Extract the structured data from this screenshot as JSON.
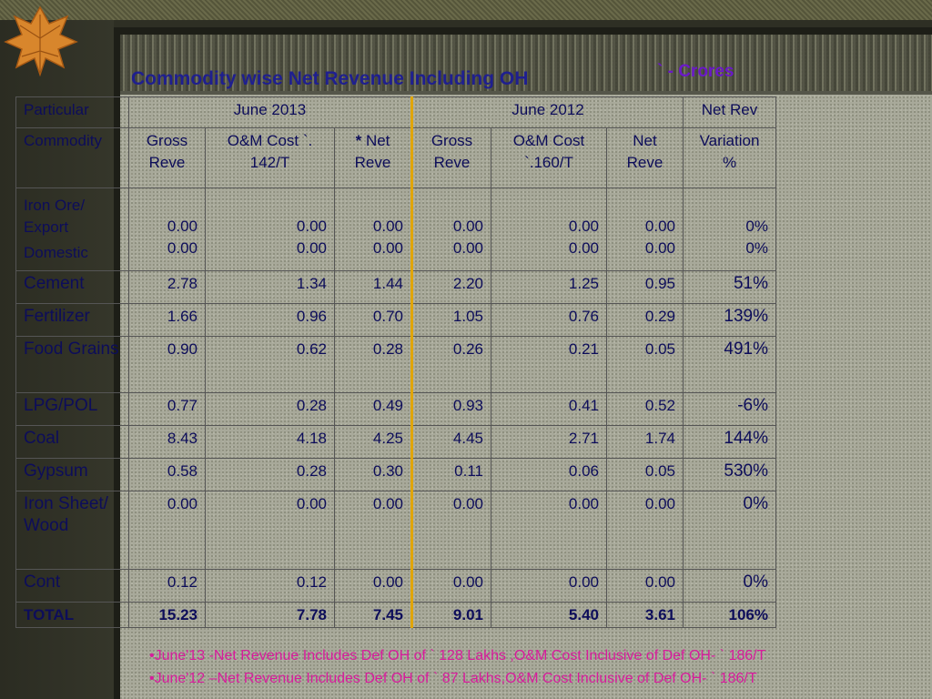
{
  "title": "Commodity wise Net Revenue Including OH",
  "unit": "` - Crores",
  "header": {
    "particular": "Particular",
    "june2013": "June 2013",
    "june2012": "June 2012",
    "net_rev": "Net Rev",
    "commodity": "Commodity",
    "gross_reve_13": "Gross Reve",
    "om_cost_13": "O&M Cost `. 142/T",
    "net_star": "*",
    "net_reve_13": "Net Reve",
    "gross_reve_12": "Gross Reve",
    "om_cost_12": "O&M Cost `.160/T",
    "net_reve_12": "Net Reve",
    "variation": "Variation %"
  },
  "iron_ore": {
    "label": "Iron Ore/ Export",
    "sub_label": "Domestic",
    "export": [
      "0.00",
      "0.00",
      "0.00",
      "0.00",
      "0.00",
      "0.00",
      "0%"
    ],
    "domestic": [
      "0.00",
      "0.00",
      "0.00",
      "0.00",
      "0.00",
      "0.00",
      "0%"
    ]
  },
  "rows": [
    {
      "name": "Cement",
      "values": [
        "2.78",
        "1.34",
        "1.44",
        "2.20",
        "1.25",
        "0.95"
      ],
      "variation": "51%"
    },
    {
      "name": "Fertilizer",
      "values": [
        "1.66",
        "0.96",
        "0.70",
        "1.05",
        "0.76",
        "0.29"
      ],
      "variation": "139%"
    },
    {
      "name": "Food Grains",
      "values": [
        "0.90",
        "0.62",
        "0.28",
        "0.26",
        "0.21",
        "0.05"
      ],
      "variation": "491%"
    },
    {
      "name": "LPG/POL",
      "values": [
        "0.77",
        "0.28",
        "0.49",
        "0.93",
        "0.41",
        "0.52"
      ],
      "variation": "-6%"
    },
    {
      "name": "Coal",
      "values": [
        "8.43",
        "4.18",
        "4.25",
        "4.45",
        "2.71",
        "1.74"
      ],
      "variation": "144%"
    },
    {
      "name": "Gypsum",
      "values": [
        "0.58",
        "0.28",
        "0.30",
        "0.11",
        "0.06",
        "0.05"
      ],
      "variation": "530%"
    },
    {
      "name": "Iron Sheet/ Wood",
      "values": [
        "0.00",
        "0.00",
        "0.00",
        "0.00",
        "0.00",
        "0.00"
      ],
      "variation": "0%"
    },
    {
      "name": "Cont",
      "values": [
        "0.12",
        "0.12",
        "0.00",
        "0.00",
        "0.00",
        "0.00"
      ],
      "variation": "0%"
    },
    {
      "name": "TOTAL",
      "values": [
        "15.23",
        "7.78",
        "7.45",
        "9.01",
        "5.40",
        "3.61"
      ],
      "variation": "106%"
    }
  ],
  "footnotes": [
    "•June'13 -Net Revenue Includes Def OH of ` 128 Lakhs ,O&M Cost Inclusive of Def OH- ` 186/T",
    "•June'12 –Net Revenue Includes Def OH of ` 87 Lakhs,O&M Cost Inclusive of Def OH- ` 186/T"
  ],
  "colors": {
    "title": "#1f1f8f",
    "unit": "#6a18c8",
    "table_text": "#0d0d5a",
    "separator": "#e0a50a",
    "footnote": "#d81b9c"
  },
  "icons": {
    "decor": "autumn-leaf-icon"
  }
}
